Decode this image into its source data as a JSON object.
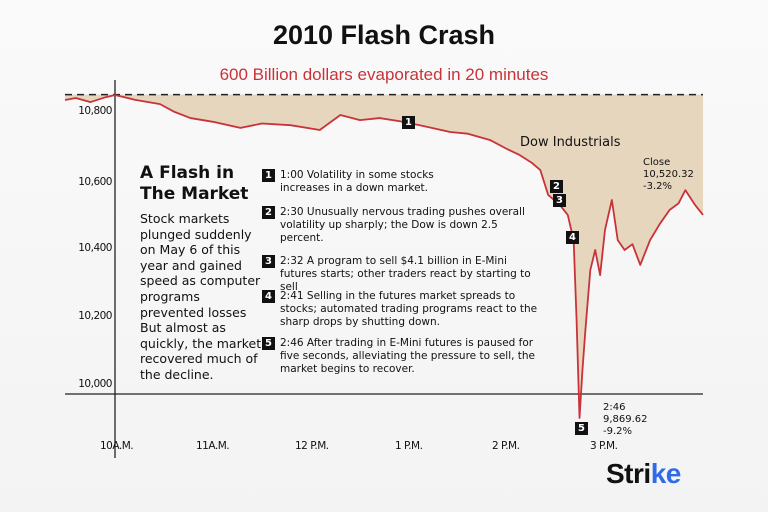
{
  "title": "2010 Flash Crash",
  "subtitle": "600 Billion dollars evaporated in 20 minutes",
  "chart_data": {
    "type": "area",
    "series_label": "Dow Industrials",
    "x_unit": "hour of day",
    "x": [
      9.49,
      9.6,
      9.75,
      9.9,
      10.0,
      10.2,
      10.46,
      10.6,
      10.77,
      11.0,
      11.28,
      11.5,
      11.79,
      12.09,
      12.3,
      12.5,
      12.7,
      12.9,
      13.11,
      13.42,
      13.6,
      13.83,
      14.0,
      14.13,
      14.25,
      14.34,
      14.42,
      14.54,
      14.62,
      14.68,
      14.71,
      14.74,
      14.77,
      14.8,
      14.85,
      14.9,
      14.95,
      15.0,
      15.07,
      15.13,
      15.2,
      15.28,
      15.36,
      15.46,
      15.56,
      15.66,
      15.75,
      15.82,
      15.92,
      16.0
    ],
    "y": [
      10844,
      10850,
      10838,
      10852,
      10859,
      10845,
      10832,
      10810,
      10791,
      10780,
      10762,
      10775,
      10770,
      10756,
      10800,
      10785,
      10791,
      10782,
      10770,
      10750,
      10745,
      10726,
      10700,
      10682,
      10660,
      10638,
      10565,
      10535,
      10506,
      10432,
      10197,
      9909,
      10050,
      10168,
      10344,
      10403,
      10329,
      10462,
      10550,
      10432,
      10403,
      10420,
      10359,
      10432,
      10480,
      10521,
      10540,
      10579,
      10535,
      10506
    ],
    "reference_level": 10860,
    "yticks": [
      "10,800",
      "10,600",
      "10,400",
      "10,200",
      "10,000"
    ],
    "ytick_values": [
      10800,
      10600,
      10400,
      10200,
      10000
    ],
    "xticks": [
      "10A.M.",
      "11A.M.",
      "12 P.M.",
      "1 P.M.",
      "2 P.M.",
      "3 P.M."
    ],
    "xtick_values": [
      10,
      11,
      12,
      13,
      14,
      15
    ],
    "colors": {
      "line": "#c8333a",
      "fill": "#e6d6bd",
      "title_accent": "#c8333a"
    }
  },
  "sidebar": {
    "heading": "A Flash in The Market",
    "body": "Stock markets plunged suddenly on May 6 of this year and gained speed as computer programs prevented losses But almost as quickly, the market recovered much of the decline."
  },
  "events": [
    {
      "n": "1",
      "text": "1:00 Volatility in some stocks increases in a down market."
    },
    {
      "n": "2",
      "text": "2:30 Unusually nervous trading pushes overall volatility up sharply; the Dow is down 2.5 percent."
    },
    {
      "n": "3",
      "text": "2:32 A program to sell $4.1 billion in E-Mini futures starts; other traders react by starting to sell"
    },
    {
      "n": "4",
      "text": "2:41 Selling in the futures market spreads to stocks; automated trading programs react to the sharp drops by shutting down."
    },
    {
      "n": "5",
      "text": "2:46 After trading in E-Mini futures is paused for five seconds, alleviating the pressure to sell, the market begins to recover."
    }
  ],
  "annotations": {
    "close": {
      "label": "Close",
      "value": "10,520.32",
      "change": "-3.2%"
    },
    "low": {
      "time": "2:46",
      "value": "9,869.62",
      "change": "-9.2%"
    }
  },
  "logo": {
    "text_main": "Stri",
    "text_accent": "ke"
  }
}
